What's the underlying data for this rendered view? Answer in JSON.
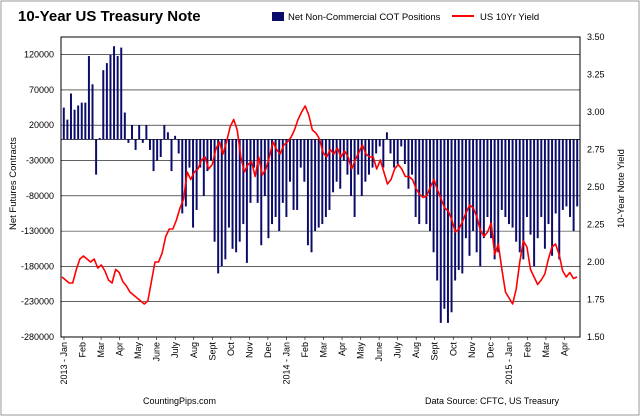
{
  "chart_data": {
    "type": "bar+line",
    "title": "10-Year US Treasury Note",
    "legend": [
      {
        "name": "Net Non-Commercial COT Positions",
        "color": "#0b0b6b"
      },
      {
        "name": "US 10Yr Yield",
        "color": "#ff0000"
      }
    ],
    "y_left": {
      "label": "Net Futures Contracts",
      "ticks": [
        "120000",
        "70000",
        "20000",
        "-30000",
        "-80000",
        "-130000",
        "-180000",
        "-230000",
        "-280000"
      ],
      "range": [
        -280000,
        145000
      ]
    },
    "y_right": {
      "label": "10-Year Note Yield",
      "ticks": [
        "3.50",
        "3.25",
        "3.00",
        "2.75",
        "2.50",
        "2.25",
        "2.00",
        "1.75",
        "1.50"
      ],
      "range": [
        1.5,
        3.5
      ]
    },
    "x_ticks": [
      "2013 - Jan",
      "Feb",
      "Mar",
      "Apr",
      "May",
      "June",
      "July",
      "Aug",
      "Sept",
      "Oct",
      "Nov",
      "Dec",
      "2014 - Jan",
      "Feb",
      "Mar",
      "Apr",
      "May",
      "June",
      "July",
      "Aug",
      "Sept",
      "Oct",
      "Nov",
      "Dec",
      "2015 - Jan",
      "Feb",
      "Mar",
      "Apr"
    ],
    "series": [
      {
        "name": "Net Non-Commercial COT Positions",
        "type": "bar",
        "values": [
          45000,
          28000,
          65000,
          42000,
          48000,
          52000,
          52000,
          118000,
          78000,
          -50000,
          2000,
          98000,
          108000,
          120000,
          132000,
          118000,
          130000,
          38000,
          -5000,
          20000,
          -15000,
          20000,
          -5000,
          20000,
          -15000,
          -45000,
          -30000,
          -25000,
          20000,
          10000,
          -45000,
          5000,
          -20000,
          -105000,
          -95000,
          -40000,
          -125000,
          -100000,
          -40000,
          -80000,
          -45000,
          -30000,
          -145000,
          -190000,
          -180000,
          -170000,
          -125000,
          -155000,
          -160000,
          -145000,
          -120000,
          -175000,
          -90000,
          -40000,
          -90000,
          -150000,
          -80000,
          -140000,
          -120000,
          -110000,
          -130000,
          -90000,
          -110000,
          -60000,
          -100000,
          -100000,
          -40000,
          -60000,
          -150000,
          -160000,
          -130000,
          -125000,
          -120000,
          -110000,
          -100000,
          -75000,
          -60000,
          -70000,
          -30000,
          -50000,
          -80000,
          -110000,
          -50000,
          -80000,
          -60000,
          -50000,
          -40000,
          -20000,
          -10000,
          -40000,
          10000,
          -20000,
          -40000,
          -35000,
          -10000,
          -35000,
          -70000,
          -50000,
          -110000,
          -120000,
          -80000,
          -120000,
          -130000,
          -160000,
          -200000,
          -260000,
          -240000,
          -260000,
          -245000,
          -200000,
          -185000,
          -190000,
          -140000,
          -165000,
          -130000,
          -160000,
          -180000,
          -140000,
          -110000,
          -140000,
          -170000,
          -160000,
          -100000,
          -110000,
          -120000,
          -125000,
          -145000,
          -160000,
          -170000,
          -110000,
          -135000,
          -180000,
          -140000,
          -110000,
          -155000,
          -120000,
          -165000,
          -105000,
          -170000,
          -100000,
          -95000,
          -110000,
          -130000,
          -95000
        ]
      },
      {
        "name": "US 10Yr Yield",
        "type": "line",
        "values": [
          1.9,
          1.88,
          1.86,
          1.86,
          1.95,
          2.02,
          2.04,
          2.02,
          2.0,
          2.02,
          1.96,
          1.98,
          1.94,
          1.88,
          1.86,
          1.95,
          1.93,
          1.87,
          1.84,
          1.8,
          1.78,
          1.76,
          1.74,
          1.72,
          1.74,
          1.87,
          2.0,
          2.0,
          2.06,
          2.17,
          2.22,
          2.22,
          2.28,
          2.36,
          2.42,
          2.6,
          2.55,
          2.6,
          2.62,
          2.68,
          2.7,
          2.62,
          2.65,
          2.75,
          2.8,
          2.72,
          2.8,
          2.9,
          2.95,
          2.88,
          2.7,
          2.6,
          2.65,
          2.67,
          2.57,
          2.7,
          2.58,
          2.62,
          2.7,
          2.8,
          2.75,
          2.72,
          2.78,
          2.8,
          2.83,
          2.88,
          2.95,
          3.0,
          3.04,
          2.98,
          2.88,
          2.86,
          2.82,
          2.73,
          2.7,
          2.75,
          2.72,
          2.76,
          2.7,
          2.74,
          2.7,
          2.62,
          2.68,
          2.73,
          2.78,
          2.72,
          2.7,
          2.7,
          2.62,
          2.68,
          2.6,
          2.52,
          2.55,
          2.62,
          2.65,
          2.62,
          2.57,
          2.57,
          2.55,
          2.49,
          2.45,
          2.43,
          2.44,
          2.5,
          2.55,
          2.48,
          2.42,
          2.36,
          2.34,
          2.28,
          2.2,
          2.22,
          2.27,
          2.33,
          2.38,
          2.36,
          2.3,
          2.21,
          2.17,
          2.2,
          2.26,
          2.05,
          2.12,
          1.95,
          1.8,
          1.76,
          1.72,
          1.82,
          2.0,
          2.14,
          2.1,
          1.95,
          1.9,
          1.85,
          1.88,
          1.92,
          2.02,
          2.1,
          2.12,
          2.05,
          1.94,
          1.9,
          1.93,
          1.89,
          1.9
        ]
      }
    ]
  },
  "footer": {
    "source_left": "CountingPips.com",
    "source_right": "Data Source: CFTC, US Treasury"
  }
}
